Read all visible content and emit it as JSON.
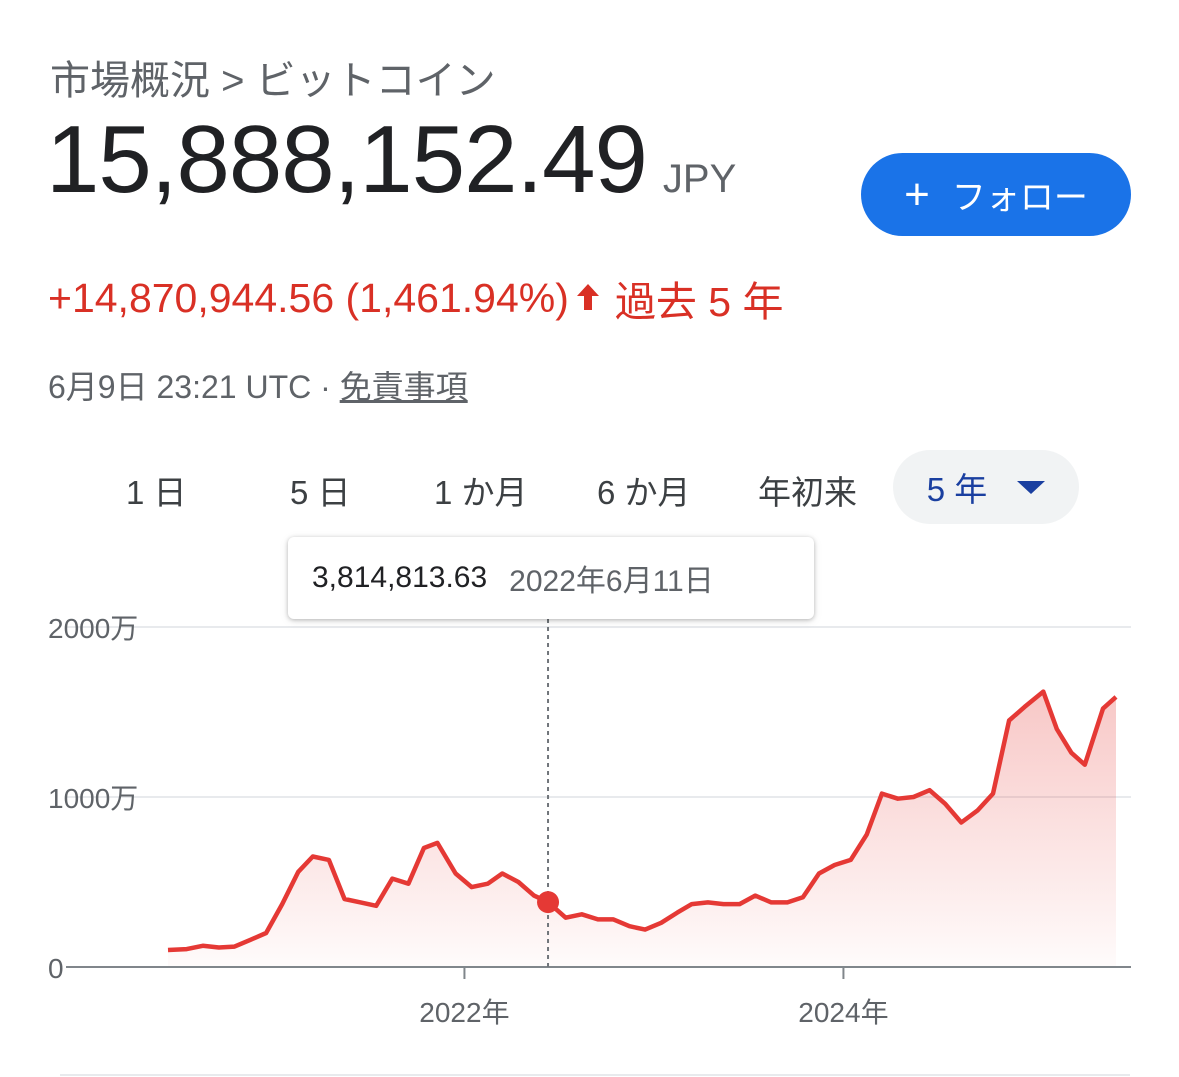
{
  "header": {
    "breadcrumb": "市場概況 > ビットコイン",
    "price": "15,888,152.49",
    "currency": "JPY",
    "follow_label": "フォロー",
    "change": "+14,870,944.56 (1,461.94%)",
    "period": "過去 5 年",
    "timestamp": "6月9日 23:21 UTC · ",
    "disclaimer": "免責事項"
  },
  "ranges": {
    "tabs": [
      "1 日",
      "5 日",
      "1 か月",
      "6 か月",
      "年初来"
    ],
    "selected": "5 年"
  },
  "tooltip": {
    "value": "3,814,813.63",
    "date": "2022年6月11日"
  },
  "colors": {
    "line": "#e53935",
    "accent": "#1a73e8",
    "negative_text": "#d93025",
    "selected_range": "#1a3fa0"
  },
  "chart_data": {
    "type": "area",
    "y_tick_labels": [
      "0",
      "1000万",
      "2000万"
    ],
    "y_tick_values": [
      0,
      10000000,
      20000000
    ],
    "x_tick_labels": [
      "2022年",
      "2024年"
    ],
    "x_tick_values": [
      "2022-01-01",
      "2024-01-01"
    ],
    "ylim": [
      0,
      20000000
    ],
    "xlim": [
      "2020-06-09",
      "2025-06-09"
    ],
    "grid": true,
    "highlight": {
      "x": "2022-06-11",
      "y": 3814813.63
    },
    "series": [
      {
        "x": [
          "2020-06-09",
          "2020-07-15",
          "2020-08-15",
          "2020-09-15",
          "2020-10-15",
          "2020-11-15",
          "2020-12-15",
          "2021-01-15",
          "2021-02-15",
          "2021-03-15",
          "2021-04-15",
          "2021-05-15",
          "2021-06-15",
          "2021-07-15",
          "2021-08-15",
          "2021-09-15",
          "2021-10-15",
          "2021-11-10",
          "2021-12-15",
          "2022-01-15",
          "2022-02-15",
          "2022-03-15",
          "2022-04-15",
          "2022-05-15",
          "2022-06-11",
          "2022-07-15",
          "2022-08-15",
          "2022-09-15",
          "2022-10-15",
          "2022-11-15",
          "2022-12-15",
          "2023-01-15",
          "2023-02-15",
          "2023-03-15",
          "2023-04-15",
          "2023-05-15",
          "2023-06-15",
          "2023-07-15",
          "2023-08-15",
          "2023-09-15",
          "2023-10-15",
          "2023-11-15",
          "2023-12-15",
          "2024-01-15",
          "2024-02-15",
          "2024-03-15",
          "2024-04-15",
          "2024-05-15",
          "2024-06-15",
          "2024-07-15",
          "2024-08-15",
          "2024-09-15",
          "2024-10-15",
          "2024-11-15",
          "2024-12-15",
          "2025-01-20",
          "2025-02-15",
          "2025-03-15",
          "2025-04-10",
          "2025-05-15",
          "2025-06-09"
        ],
        "values": [
          1000000,
          1050000,
          1250000,
          1150000,
          1200000,
          1600000,
          2000000,
          3700000,
          5600000,
          6500000,
          6300000,
          4000000,
          3800000,
          3600000,
          5200000,
          4900000,
          7000000,
          7300000,
          5500000,
          4700000,
          4900000,
          5500000,
          5000000,
          4200000,
          3814813.63,
          2900000,
          3100000,
          2800000,
          2800000,
          2400000,
          2200000,
          2600000,
          3200000,
          3700000,
          3800000,
          3700000,
          3700000,
          4200000,
          3800000,
          3800000,
          4100000,
          5500000,
          6000000,
          6300000,
          7800000,
          10200000,
          9900000,
          10000000,
          10400000,
          9600000,
          8500000,
          9200000,
          10200000,
          14500000,
          15300000,
          16200000,
          14000000,
          12600000,
          11900000,
          15200000,
          15888152.49
        ]
      }
    ]
  }
}
